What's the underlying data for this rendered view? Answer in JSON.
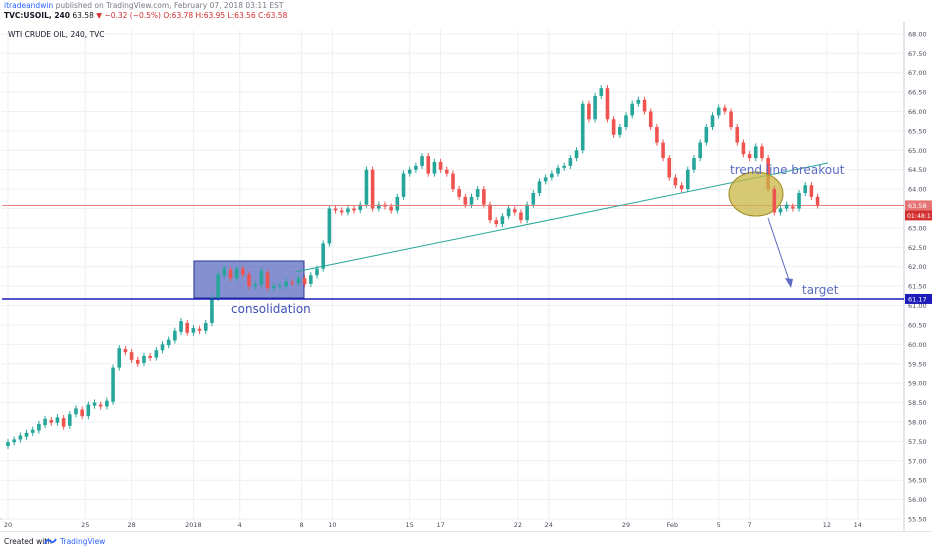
{
  "header": {
    "author": "itradeandwin",
    "published": "published on TradingView.com, February 07, 2018 03:11 EST",
    "symbol": "TVC:USOIL, 240",
    "last": "63.58",
    "arrow": "▼",
    "change": "−0.32 (−0.5%)",
    "ohlc": "O:63.78 H:63.95 L:63.56 C:63.58"
  },
  "footer": {
    "created_with": "Created with",
    "brand": "TradingView"
  },
  "chart_data": {
    "type": "candlestick",
    "title": "WTI CRUDE OIL, 240, TVC",
    "ylim": [
      55.5,
      68.1
    ],
    "y_ticks": [
      "68.00",
      "67.50",
      "67.00",
      "66.50",
      "66.00",
      "65.50",
      "65.00",
      "64.50",
      "64.00",
      "63.50",
      "63.00",
      "62.50",
      "62.00",
      "61.50",
      "61.00",
      "60.50",
      "60.00",
      "59.50",
      "59.00",
      "58.50",
      "58.00",
      "57.50",
      "57.00",
      "56.50",
      "56.00",
      "55.50"
    ],
    "x_ticks": [
      {
        "label": "20",
        "day": 0
      },
      {
        "label": "25",
        "day": 5
      },
      {
        "label": "28",
        "day": 8
      },
      {
        "label": "2018",
        "day": 12
      },
      {
        "label": "4",
        "day": 15
      },
      {
        "label": "8",
        "day": 19
      },
      {
        "label": "10",
        "day": 21
      },
      {
        "label": "15",
        "day": 26
      },
      {
        "label": "17",
        "day": 28
      },
      {
        "label": "22",
        "day": 33
      },
      {
        "label": "24",
        "day": 35
      },
      {
        "label": "29",
        "day": 40
      },
      {
        "label": "Feb",
        "day": 43
      },
      {
        "label": "5",
        "day": 46
      },
      {
        "label": "7",
        "day": 48
      },
      {
        "label": "12",
        "day": 53
      },
      {
        "label": "14",
        "day": 55
      }
    ],
    "candles": [
      [
        0.0,
        57.38,
        57.48
      ],
      [
        0.4,
        57.48,
        57.55
      ],
      [
        0.8,
        57.55,
        57.65
      ],
      [
        1.2,
        57.62,
        57.72
      ],
      [
        1.6,
        57.72,
        57.8
      ],
      [
        2.0,
        57.78,
        57.95
      ],
      [
        2.4,
        57.92,
        58.08
      ],
      [
        2.8,
        58.05,
        57.98
      ],
      [
        3.2,
        57.98,
        58.12
      ],
      [
        3.6,
        58.1,
        57.88
      ],
      [
        4.0,
        57.9,
        58.2
      ],
      [
        4.4,
        58.2,
        58.35
      ],
      [
        4.8,
        58.32,
        58.15
      ],
      [
        5.2,
        58.15,
        58.45
      ],
      [
        5.6,
        58.42,
        58.5
      ],
      [
        6.0,
        58.45,
        58.4
      ],
      [
        6.4,
        58.4,
        58.55
      ],
      [
        6.8,
        58.52,
        59.4
      ],
      [
        7.2,
        59.4,
        59.9
      ],
      [
        7.6,
        59.88,
        59.8
      ],
      [
        8.0,
        59.8,
        59.6
      ],
      [
        8.4,
        59.6,
        59.5
      ],
      [
        8.8,
        59.52,
        59.7
      ],
      [
        9.2,
        59.7,
        59.65
      ],
      [
        9.6,
        59.66,
        59.85
      ],
      [
        10.0,
        59.85,
        60.0
      ],
      [
        10.4,
        59.98,
        60.12
      ],
      [
        10.8,
        60.1,
        60.35
      ],
      [
        11.2,
        60.32,
        60.6
      ],
      [
        11.6,
        60.55,
        60.3
      ],
      [
        12.0,
        60.3,
        60.42
      ],
      [
        12.4,
        60.4,
        60.35
      ],
      [
        12.8,
        60.35,
        60.55
      ],
      [
        13.2,
        60.55,
        61.2
      ],
      [
        13.6,
        61.2,
        61.8
      ],
      [
        14.0,
        61.78,
        61.95
      ],
      [
        14.4,
        61.92,
        61.7
      ],
      [
        14.8,
        61.7,
        61.95
      ],
      [
        15.2,
        61.95,
        61.8
      ],
      [
        15.6,
        61.8,
        61.5
      ],
      [
        16.0,
        61.5,
        61.55
      ],
      [
        16.4,
        61.55,
        61.9
      ],
      [
        16.8,
        61.85,
        61.45
      ],
      [
        17.2,
        61.45,
        61.5
      ],
      [
        17.6,
        61.5,
        61.52
      ],
      [
        18.0,
        61.5,
        61.62
      ],
      [
        18.4,
        61.6,
        61.58
      ],
      [
        18.8,
        61.58,
        61.7
      ],
      [
        19.2,
        61.7,
        61.55
      ],
      [
        19.6,
        61.56,
        61.78
      ],
      [
        20.0,
        61.78,
        61.95
      ],
      [
        20.4,
        61.95,
        62.6
      ],
      [
        20.8,
        62.6,
        63.5
      ],
      [
        21.2,
        63.5,
        63.45
      ],
      [
        21.6,
        63.45,
        63.4
      ],
      [
        22.0,
        63.4,
        63.5
      ],
      [
        22.4,
        63.5,
        63.45
      ],
      [
        22.8,
        63.46,
        63.6
      ],
      [
        23.2,
        63.6,
        64.5
      ],
      [
        23.6,
        64.5,
        63.5
      ],
      [
        24.0,
        63.5,
        63.6
      ],
      [
        24.4,
        63.6,
        63.55
      ],
      [
        24.8,
        63.55,
        63.45
      ],
      [
        25.2,
        63.45,
        63.8
      ],
      [
        25.6,
        63.8,
        64.4
      ],
      [
        26.0,
        64.4,
        64.5
      ],
      [
        26.4,
        64.5,
        64.6
      ],
      [
        26.8,
        64.6,
        64.85
      ],
      [
        27.2,
        64.85,
        64.4
      ],
      [
        27.6,
        64.4,
        64.7
      ],
      [
        28.0,
        64.7,
        64.5
      ],
      [
        28.4,
        64.5,
        64.4
      ],
      [
        28.8,
        64.4,
        64.0
      ],
      [
        29.2,
        64.0,
        63.8
      ],
      [
        29.6,
        63.8,
        63.6
      ],
      [
        30.0,
        63.6,
        63.8
      ],
      [
        30.4,
        63.8,
        64.0
      ],
      [
        30.8,
        64.0,
        63.6
      ],
      [
        31.2,
        63.6,
        63.2
      ],
      [
        31.6,
        63.2,
        63.1
      ],
      [
        32.0,
        63.1,
        63.3
      ],
      [
        32.4,
        63.3,
        63.5
      ],
      [
        32.8,
        63.48,
        63.4
      ],
      [
        33.2,
        63.4,
        63.2
      ],
      [
        33.6,
        63.2,
        63.6
      ],
      [
        34.0,
        63.6,
        63.9
      ],
      [
        34.4,
        63.9,
        64.2
      ],
      [
        34.8,
        64.2,
        64.3
      ],
      [
        35.2,
        64.3,
        64.4
      ],
      [
        35.6,
        64.4,
        64.55
      ],
      [
        36.0,
        64.55,
        64.6
      ],
      [
        36.4,
        64.6,
        64.8
      ],
      [
        36.8,
        64.8,
        65.0
      ],
      [
        37.2,
        65.0,
        66.2
      ],
      [
        37.6,
        66.2,
        65.8
      ],
      [
        38.0,
        65.8,
        66.4
      ],
      [
        38.4,
        66.4,
        66.6
      ],
      [
        38.8,
        66.6,
        65.8
      ],
      [
        39.2,
        65.8,
        65.4
      ],
      [
        39.6,
        65.4,
        65.6
      ],
      [
        40.0,
        65.6,
        65.9
      ],
      [
        40.4,
        65.9,
        66.2
      ],
      [
        40.8,
        66.2,
        66.3
      ],
      [
        41.2,
        66.3,
        66.0
      ],
      [
        41.6,
        66.0,
        65.6
      ],
      [
        42.0,
        65.6,
        65.2
      ],
      [
        42.4,
        65.2,
        64.8
      ],
      [
        42.8,
        64.8,
        64.3
      ],
      [
        43.2,
        64.3,
        64.1
      ],
      [
        43.6,
        64.1,
        64.0
      ],
      [
        44.0,
        64.0,
        64.5
      ],
      [
        44.4,
        64.5,
        64.8
      ],
      [
        44.8,
        64.8,
        65.2
      ],
      [
        45.2,
        65.2,
        65.6
      ],
      [
        45.6,
        65.6,
        65.9
      ],
      [
        46.0,
        65.9,
        66.1
      ],
      [
        46.4,
        66.1,
        66.0
      ],
      [
        46.8,
        66.0,
        65.6
      ],
      [
        47.2,
        65.6,
        65.2
      ],
      [
        47.6,
        65.2,
        64.9
      ],
      [
        48.0,
        64.9,
        64.8
      ],
      [
        48.4,
        64.8,
        65.1
      ],
      [
        48.8,
        65.1,
        64.8
      ],
      [
        49.2,
        64.8,
        64.0
      ],
      [
        49.6,
        64.0,
        63.4
      ],
      [
        50.0,
        63.4,
        63.5
      ],
      [
        50.4,
        63.5,
        63.6
      ],
      [
        50.8,
        63.55,
        63.5
      ],
      [
        51.2,
        63.5,
        63.9
      ],
      [
        51.6,
        63.9,
        64.1
      ],
      [
        52.0,
        64.1,
        63.8
      ],
      [
        52.4,
        63.8,
        63.58
      ]
    ],
    "horizontal_lines": [
      {
        "price": 61.17,
        "label": "61.17",
        "color": "#1c1cb8"
      },
      {
        "price": 63.58,
        "label": "63.58",
        "color": "#e57373"
      }
    ],
    "countdown": "01:48:1",
    "annotations": {
      "consolidation": "consolidation",
      "trend_line_breakout": "trend line breakout",
      "target": "target"
    },
    "colors": {
      "up": "#26a69a",
      "down": "#ef5350",
      "box": "#5c6bc0",
      "circle": "#c9b545",
      "trend": "#26a69a"
    }
  }
}
